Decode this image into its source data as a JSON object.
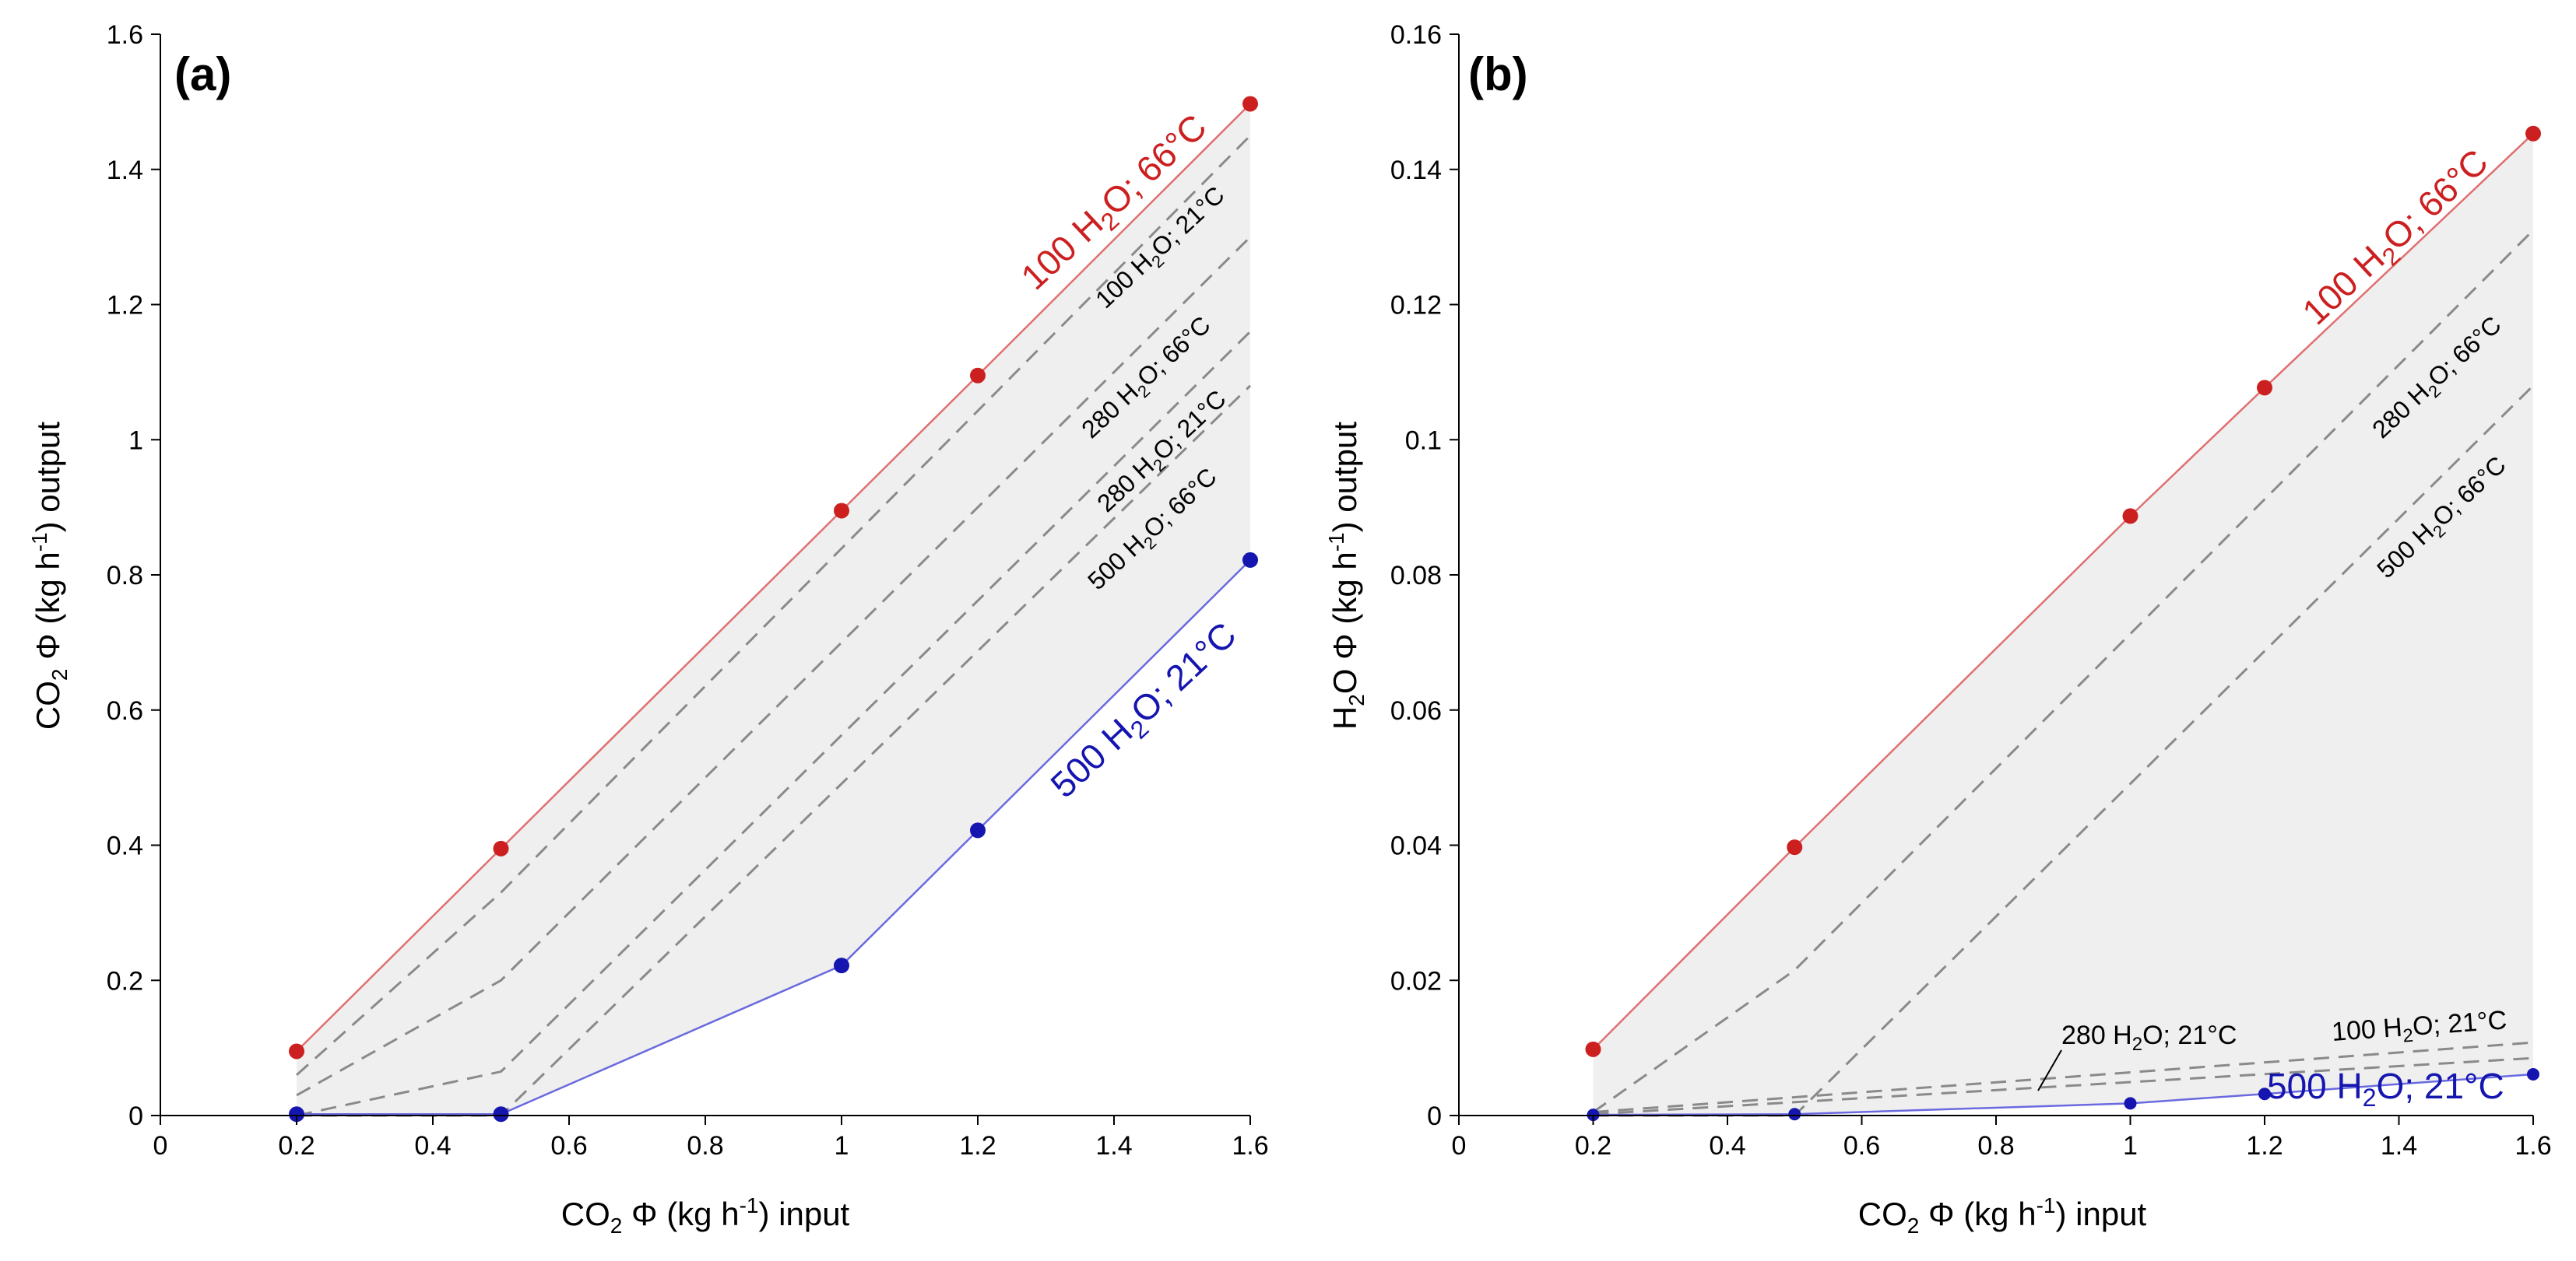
{
  "colors": {
    "red": "#cc2020",
    "red_line": "#e07070",
    "blue": "#1515b0",
    "blue_line": "#6a6ae0",
    "band_fill": "#efefef",
    "dashed": "#8a8a8a"
  },
  "chart_data": [
    {
      "type": "line",
      "panel_label": "(a)",
      "xlabel": "CO₂ Φ (kg h⁻¹) input",
      "ylabel": "CO₂ Φ (kg h⁻¹) output",
      "xlim": [
        0,
        1.6
      ],
      "ylim": [
        0,
        1.6
      ],
      "xticks": [
        0,
        0.2,
        0.4,
        0.6,
        0.8,
        1,
        1.2,
        1.4,
        1.6
      ],
      "yticks": [
        0,
        0.2,
        0.4,
        0.6,
        0.8,
        1,
        1.2,
        1.4,
        1.6
      ],
      "shaded_band_between": [
        "100 H₂O; 66°C",
        "500 H₂O; 21°C"
      ],
      "series": [
        {
          "name": "100 H₂O; 66°C",
          "style": "solid-red",
          "markers": true,
          "x": [
            0.2,
            0.5,
            1,
            1.2,
            1.6
          ],
          "y": [
            0.095,
            0.395,
            0.895,
            1.095,
            1.497
          ]
        },
        {
          "name": "100 H₂O; 21°C",
          "style": "dashed",
          "markers": false,
          "x": [
            0.2,
            0.5,
            1.6
          ],
          "y": [
            0.06,
            0.33,
            1.45
          ]
        },
        {
          "name": "280 H₂O; 66°C",
          "style": "dashed",
          "markers": false,
          "x": [
            0.2,
            0.5,
            1.6
          ],
          "y": [
            0.03,
            0.2,
            1.3
          ]
        },
        {
          "name": "280 H₂O; 21°C",
          "style": "dashed",
          "markers": false,
          "x": [
            0.2,
            0.5,
            1.6
          ],
          "y": [
            0.0,
            0.065,
            1.16
          ]
        },
        {
          "name": "500 H₂O; 66°C",
          "style": "dashed",
          "markers": false,
          "x": [
            0.2,
            0.5,
            1.6
          ],
          "y": [
            0.0,
            0.0,
            1.08
          ]
        },
        {
          "name": "500 H₂O; 21°C",
          "style": "solid-blue",
          "markers": true,
          "x": [
            0.2,
            0.5,
            1,
            1.2,
            1.6
          ],
          "y": [
            0.002,
            0.002,
            0.222,
            0.422,
            0.822
          ]
        }
      ],
      "zero_line": true
    },
    {
      "type": "line",
      "panel_label": "(b)",
      "xlabel": "CO₂ Φ (kg h⁻¹) input",
      "ylabel": "H₂O Φ (kg h⁻¹) output",
      "xlim": [
        0,
        1.6
      ],
      "ylim": [
        0,
        0.16
      ],
      "xticks": [
        0,
        0.2,
        0.4,
        0.6,
        0.8,
        1,
        1.2,
        1.4,
        1.6
      ],
      "yticks": [
        0,
        0.02,
        0.04,
        0.06,
        0.08,
        0.1,
        0.12,
        0.14,
        0.16
      ],
      "shaded_band_between": [
        "100 H₂O; 66°C",
        "500 H₂O; 21°C"
      ],
      "series": [
        {
          "name": "100 H₂O; 66°C",
          "style": "solid-red",
          "markers": true,
          "x": [
            0.2,
            0.5,
            1,
            1.2,
            1.6
          ],
          "y": [
            0.0098,
            0.0397,
            0.0887,
            0.1077,
            0.1453
          ]
        },
        {
          "name": "280 H₂O; 66°C",
          "style": "dashed",
          "markers": false,
          "x": [
            0.2,
            0.5,
            1.6
          ],
          "y": [
            0.0005,
            0.0215,
            0.131
          ]
        },
        {
          "name": "500 H₂O; 66°C",
          "style": "dashed",
          "markers": false,
          "x": [
            0.2,
            0.5,
            1.6
          ],
          "y": [
            0.0,
            0.0,
            0.108
          ]
        },
        {
          "name": "100 H₂O; 21°C",
          "style": "dashed",
          "markers": false,
          "x": [
            0.2,
            1.6
          ],
          "y": [
            0.0005,
            0.0108
          ]
        },
        {
          "name": "280 H₂O; 21°C",
          "style": "dashed",
          "markers": false,
          "x": [
            0.2,
            1.6
          ],
          "y": [
            0.0002,
            0.0085
          ]
        },
        {
          "name": "500 H₂O; 21°C",
          "style": "solid-blue",
          "markers": true,
          "x": [
            0.2,
            0.5,
            1,
            1.2,
            1.6
          ],
          "y": [
            0.0001,
            0.0002,
            0.0018,
            0.0032,
            0.0061
          ]
        }
      ],
      "zero_line": true
    }
  ]
}
